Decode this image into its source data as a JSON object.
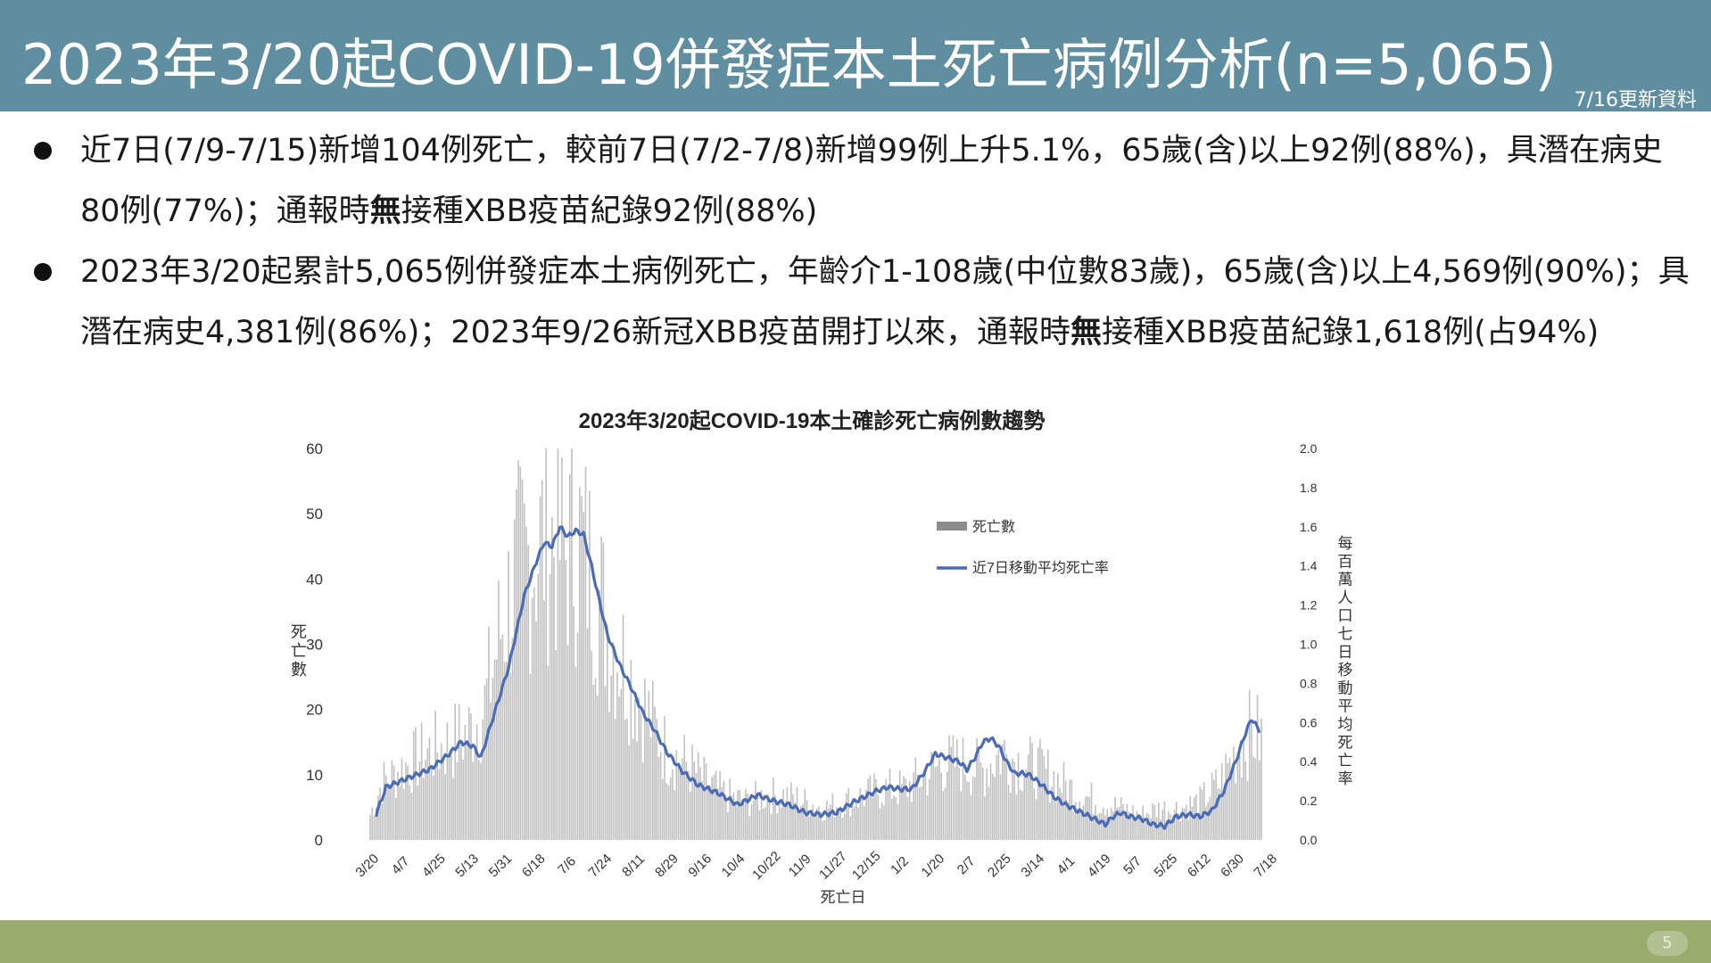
{
  "header": {
    "title": "2023年3/20起COVID-19併發症本土死亡病例分析(n=5,065)",
    "update_note": "7/16更新資料"
  },
  "bullets": [
    {
      "pre": "近7日(7/9-7/15)新增104例死亡，較前7日(7/2-7/8)新增99例上升5.1%，65歲(含)以上92例(88%)，具潛在病史80例(77%)；通報時",
      "bold": "無",
      "post": "接種XBB疫苗紀錄92例(88%)"
    },
    {
      "pre": "2023年3/20起累計5,065例併發症本土病例死亡，年齡介1-108歲(中位數83歲)，65歲(含)以上4,569例(90%)；具潛在病史4,381例(86%)；2023年9/26新冠XBB疫苗開打以來，通報時",
      "bold": "無",
      "post": "接種XBB疫苗紀錄1,618例(占94%)"
    }
  ],
  "chart_data": {
    "type": "bar",
    "title": "2023年3/20起COVID-19本土確診死亡病例數趨勢",
    "xlabel": "死亡日",
    "ylabel": "死亡數",
    "y2label": "每百萬人口七日移動平均死亡率",
    "ylim": [
      0,
      60
    ],
    "y_ticks": [
      0,
      10,
      20,
      30,
      40,
      50,
      60
    ],
    "y2lim": [
      0,
      2.0
    ],
    "y2_ticks": [
      "0.0",
      "0.2",
      "0.4",
      "0.6",
      "0.8",
      "1.0",
      "1.2",
      "1.4",
      "1.6",
      "1.8",
      "2.0"
    ],
    "x_tick_labels": [
      "3/20",
      "4/7",
      "4/25",
      "5/13",
      "5/31",
      "6/18",
      "7/6",
      "7/24",
      "8/11",
      "8/29",
      "9/16",
      "10/4",
      "10/22",
      "11/9",
      "11/27",
      "12/15",
      "1/2",
      "1/20",
      "2/7",
      "2/25",
      "3/14",
      "4/1",
      "4/19",
      "5/7",
      "5/25",
      "6/12",
      "6/30",
      "7/18"
    ],
    "legend": {
      "bars": "死亡數",
      "line": "近7日移動平均死亡率",
      "position": "upper-right"
    },
    "bar_color": "#c0c0c0",
    "line_color": "#4a6bb5",
    "series": [
      {
        "name": "死亡數",
        "description": "daily deaths, 3/20/2023 to 7/15/2024",
        "anchors_day_value": [
          [
            0,
            4
          ],
          [
            6,
            9
          ],
          [
            20,
            12
          ],
          [
            30,
            14
          ],
          [
            40,
            15
          ],
          [
            50,
            17
          ],
          [
            58,
            21
          ],
          [
            66,
            33
          ],
          [
            74,
            42
          ],
          [
            82,
            45
          ],
          [
            90,
            48
          ],
          [
            98,
            45
          ],
          [
            106,
            47
          ],
          [
            114,
            40
          ],
          [
            122,
            32
          ],
          [
            130,
            27
          ],
          [
            140,
            20
          ],
          [
            150,
            14
          ],
          [
            160,
            12
          ],
          [
            170,
            9
          ],
          [
            180,
            7
          ],
          [
            190,
            6
          ],
          [
            200,
            7
          ],
          [
            210,
            7
          ],
          [
            220,
            6
          ],
          [
            230,
            5
          ],
          [
            240,
            6
          ],
          [
            250,
            7
          ],
          [
            260,
            8
          ],
          [
            270,
            8
          ],
          [
            280,
            10
          ],
          [
            290,
            12
          ],
          [
            300,
            12
          ],
          [
            310,
            11
          ],
          [
            320,
            14
          ],
          [
            330,
            12
          ],
          [
            340,
            11
          ],
          [
            350,
            9
          ],
          [
            360,
            7
          ],
          [
            370,
            6
          ],
          [
            380,
            5
          ],
          [
            390,
            4
          ],
          [
            400,
            5
          ],
          [
            410,
            5
          ],
          [
            420,
            6
          ],
          [
            430,
            9
          ],
          [
            440,
            15
          ],
          [
            446,
            17
          ],
          [
            451,
            16
          ]
        ],
        "total_days": 452
      },
      {
        "name": "近7日移動平均死亡率",
        "description": "per-million 7-day moving average, same days",
        "anchors_day_value": [
          [
            3,
            0.13
          ],
          [
            8,
            0.27
          ],
          [
            20,
            0.32
          ],
          [
            30,
            0.36
          ],
          [
            40,
            0.44
          ],
          [
            46,
            0.5
          ],
          [
            52,
            0.48
          ],
          [
            56,
            0.42
          ],
          [
            62,
            0.62
          ],
          [
            70,
            0.88
          ],
          [
            78,
            1.25
          ],
          [
            84,
            1.42
          ],
          [
            88,
            1.52
          ],
          [
            92,
            1.5
          ],
          [
            96,
            1.6
          ],
          [
            100,
            1.55
          ],
          [
            104,
            1.58
          ],
          [
            108,
            1.56
          ],
          [
            112,
            1.4
          ],
          [
            116,
            1.22
          ],
          [
            120,
            1.05
          ],
          [
            126,
            0.9
          ],
          [
            132,
            0.78
          ],
          [
            138,
            0.65
          ],
          [
            144,
            0.56
          ],
          [
            150,
            0.45
          ],
          [
            158,
            0.35
          ],
          [
            166,
            0.28
          ],
          [
            176,
            0.24
          ],
          [
            186,
            0.18
          ],
          [
            196,
            0.23
          ],
          [
            204,
            0.2
          ],
          [
            212,
            0.18
          ],
          [
            220,
            0.14
          ],
          [
            228,
            0.13
          ],
          [
            236,
            0.14
          ],
          [
            244,
            0.19
          ],
          [
            250,
            0.22
          ],
          [
            256,
            0.25
          ],
          [
            262,
            0.27
          ],
          [
            268,
            0.26
          ],
          [
            274,
            0.26
          ],
          [
            280,
            0.34
          ],
          [
            286,
            0.44
          ],
          [
            292,
            0.42
          ],
          [
            298,
            0.4
          ],
          [
            302,
            0.36
          ],
          [
            306,
            0.42
          ],
          [
            310,
            0.5
          ],
          [
            314,
            0.52
          ],
          [
            318,
            0.48
          ],
          [
            322,
            0.4
          ],
          [
            326,
            0.34
          ],
          [
            330,
            0.34
          ],
          [
            334,
            0.33
          ],
          [
            340,
            0.28
          ],
          [
            346,
            0.22
          ],
          [
            352,
            0.18
          ],
          [
            358,
            0.15
          ],
          [
            364,
            0.12
          ],
          [
            368,
            0.1
          ],
          [
            372,
            0.08
          ],
          [
            376,
            0.12
          ],
          [
            380,
            0.14
          ],
          [
            384,
            0.12
          ],
          [
            390,
            0.11
          ],
          [
            396,
            0.08
          ],
          [
            402,
            0.07
          ],
          [
            408,
            0.12
          ],
          [
            414,
            0.13
          ],
          [
            420,
            0.12
          ],
          [
            426,
            0.15
          ],
          [
            432,
            0.25
          ],
          [
            438,
            0.4
          ],
          [
            442,
            0.52
          ],
          [
            446,
            0.62
          ],
          [
            450,
            0.56
          ]
        ]
      }
    ]
  },
  "footer": {
    "page_number": "5"
  }
}
